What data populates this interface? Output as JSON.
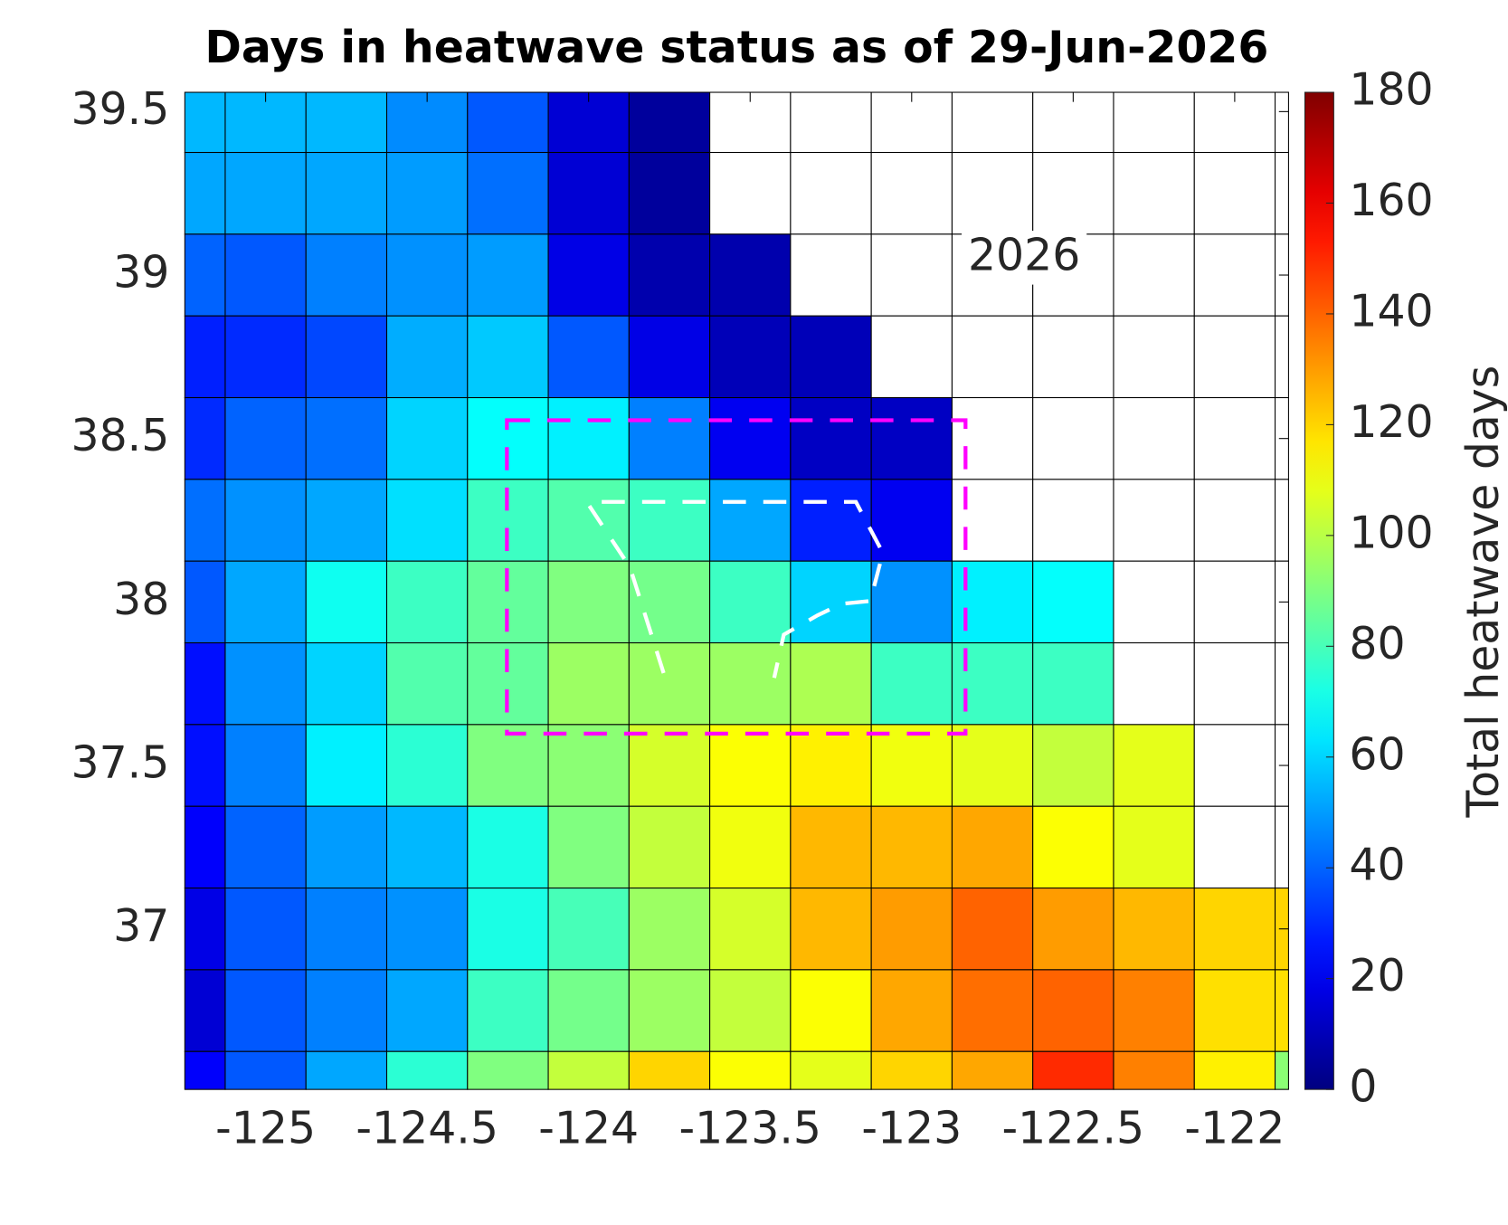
{
  "chart_data": {
    "type": "heatmap",
    "title": "Days in heatwave status as of 29-Jun-2026",
    "annotation": "2026",
    "colorbar_label": "Total heatwave days",
    "colormap": "jet",
    "clim": [
      0,
      180
    ],
    "colorbar_ticks": [
      0,
      20,
      40,
      60,
      80,
      100,
      120,
      140,
      160,
      180
    ],
    "x": [
      -125.25,
      -125,
      -124.75,
      -124.5,
      -124.25,
      -124,
      -123.75,
      -123.5,
      -123.25,
      -123,
      -122.75,
      -122.5,
      -122.25,
      -122,
      -121.75
    ],
    "y": [
      39.5,
      39.25,
      39,
      38.75,
      38.5,
      38.25,
      38,
      37.75,
      37.5,
      37.25,
      37,
      36.75,
      36.5
    ],
    "xlim": [
      -125.25,
      -121.8333
    ],
    "ylim": [
      36.509,
      39.559
    ],
    "xticks": [
      -125,
      -124.5,
      -124,
      -123.5,
      -123,
      -122.5,
      -122
    ],
    "yticks": [
      37,
      37.5,
      38,
      38.5,
      39,
      39.5
    ],
    "grid": true,
    "values": [
      [
        55,
        55,
        55,
        47,
        38,
        15,
        5,
        null,
        null,
        null,
        null,
        null,
        null,
        null,
        null
      ],
      [
        52,
        52,
        52,
        50,
        42,
        15,
        5,
        null,
        null,
        null,
        null,
        null,
        null,
        null,
        null
      ],
      [
        40,
        38,
        45,
        48,
        50,
        18,
        8,
        8,
        null,
        null,
        null,
        null,
        null,
        null,
        null
      ],
      [
        28,
        30,
        35,
        53,
        58,
        38,
        18,
        10,
        10,
        null,
        null,
        null,
        null,
        null,
        null
      ],
      [
        30,
        40,
        42,
        60,
        68,
        65,
        45,
        20,
        12,
        12,
        null,
        null,
        null,
        null,
        null
      ],
      [
        42,
        48,
        52,
        62,
        78,
        82,
        78,
        52,
        28,
        20,
        null,
        null,
        null,
        null,
        null
      ],
      [
        38,
        52,
        70,
        78,
        85,
        90,
        88,
        78,
        60,
        48,
        65,
        68,
        null,
        null,
        null
      ],
      [
        25,
        48,
        60,
        82,
        85,
        95,
        95,
        95,
        98,
        78,
        78,
        78,
        null,
        null,
        null
      ],
      [
        25,
        45,
        65,
        75,
        90,
        92,
        105,
        112,
        115,
        110,
        108,
        102,
        108,
        null,
        null
      ],
      [
        22,
        40,
        50,
        55,
        72,
        90,
        102,
        110,
        125,
        125,
        128,
        112,
        108,
        null,
        null
      ],
      [
        18,
        38,
        45,
        48,
        72,
        80,
        95,
        105,
        125,
        130,
        140,
        130,
        125,
        120,
        120
      ],
      [
        15,
        38,
        45,
        52,
        78,
        88,
        95,
        102,
        112,
        128,
        138,
        140,
        135,
        118,
        118
      ],
      [
        22,
        38,
        52,
        75,
        90,
        102,
        120,
        112,
        108,
        120,
        128,
        150,
        135,
        115,
        92
      ]
    ]
  }
}
